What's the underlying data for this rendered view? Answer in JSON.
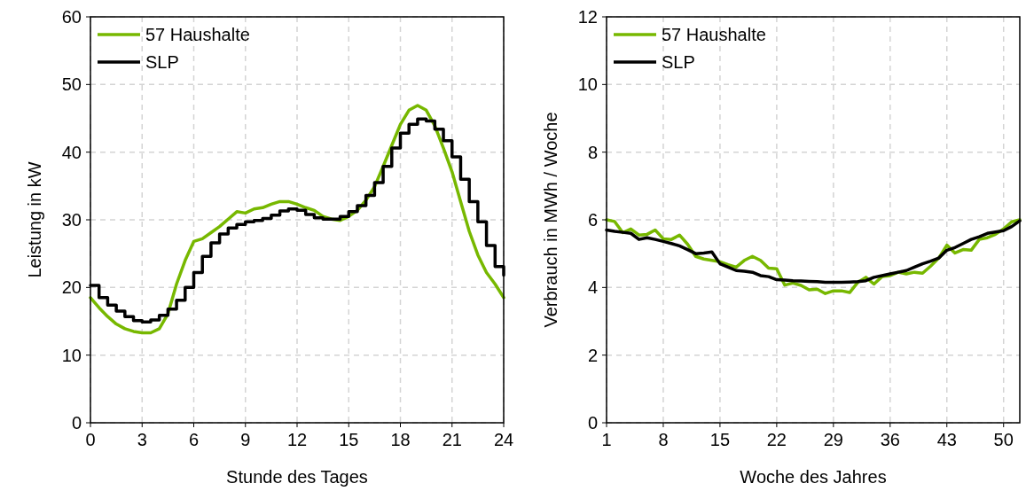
{
  "chart_data": [
    {
      "type": "line",
      "xlabel": "Stunde des Tages",
      "ylabel": "Leistung in kW",
      "xlim": [
        0,
        24
      ],
      "xticks": [
        0,
        3,
        6,
        9,
        12,
        15,
        18,
        21,
        24
      ],
      "ylim": [
        0,
        60
      ],
      "yticks": [
        0,
        10,
        20,
        30,
        40,
        50,
        60
      ],
      "grid": true,
      "legend": "top left",
      "line_style": "solid",
      "x": [
        0,
        0.5,
        1,
        1.5,
        2,
        2.5,
        3,
        3.5,
        4,
        4.5,
        5,
        5.5,
        6,
        6.5,
        7,
        7.5,
        8,
        8.5,
        9,
        9.5,
        10,
        10.5,
        11,
        11.5,
        12,
        12.5,
        13,
        13.5,
        14,
        14.5,
        15,
        15.5,
        16,
        16.5,
        17,
        17.5,
        18,
        18.5,
        19,
        19.5,
        20,
        20.5,
        21,
        21.5,
        22,
        22.5,
        23,
        23.5,
        24
      ],
      "series": [
        {
          "name": "57 Haushalte",
          "color": "#77b800",
          "values": [
            18.5,
            17.0,
            15.7,
            14.6,
            13.9,
            13.5,
            13.3,
            13.3,
            13.9,
            16.1,
            20.5,
            24.0,
            26.8,
            27.2,
            28.1,
            29.0,
            30.1,
            31.2,
            31.0,
            31.6,
            31.8,
            32.3,
            32.7,
            32.7,
            32.3,
            31.8,
            31.4,
            30.5,
            30.1,
            29.9,
            30.5,
            31.4,
            32.9,
            34.9,
            37.9,
            41.0,
            44.1,
            46.2,
            46.9,
            46.2,
            43.9,
            40.6,
            37.1,
            32.7,
            28.3,
            24.8,
            22.2,
            20.5,
            18.5
          ]
        },
        {
          "name": "SLP",
          "color": "#000000",
          "type": "step",
          "values": [
            20.3,
            18.5,
            17.4,
            16.5,
            15.7,
            15.1,
            14.9,
            15.2,
            15.9,
            16.8,
            18.1,
            20.0,
            22.2,
            24.6,
            26.6,
            27.9,
            28.8,
            29.3,
            29.7,
            29.9,
            30.2,
            30.7,
            31.3,
            31.6,
            31.4,
            30.8,
            30.3,
            30.1,
            30.1,
            30.5,
            31.2,
            32.1,
            33.6,
            35.5,
            37.9,
            40.6,
            42.8,
            44.1,
            44.9,
            44.6,
            43.4,
            41.7,
            39.3,
            36.0,
            32.7,
            29.7,
            26.2,
            23.1,
            21.8
          ]
        }
      ]
    },
    {
      "type": "line",
      "xlabel": "Woche des Jahres",
      "ylabel": "Verbrauch in MWh / Woche",
      "xlim": [
        1,
        52
      ],
      "xticks": [
        1,
        8,
        15,
        22,
        29,
        36,
        43,
        50
      ],
      "ylim": [
        0,
        12
      ],
      "yticks": [
        0,
        2,
        4,
        6,
        8,
        10,
        12
      ],
      "grid": true,
      "legend": "top left",
      "line_style": "solid",
      "x": [
        1,
        2,
        3,
        4,
        5,
        6,
        7,
        8,
        9,
        10,
        11,
        12,
        13,
        14,
        15,
        16,
        17,
        18,
        19,
        20,
        21,
        22,
        23,
        24,
        25,
        26,
        27,
        28,
        29,
        30,
        31,
        32,
        33,
        34,
        35,
        36,
        37,
        38,
        39,
        40,
        41,
        42,
        43,
        44,
        45,
        46,
        47,
        48,
        49,
        50,
        51,
        52
      ],
      "series": [
        {
          "name": "57 Haushalte",
          "color": "#77b800",
          "values": [
            6.0,
            5.95,
            5.62,
            5.73,
            5.55,
            5.57,
            5.7,
            5.44,
            5.42,
            5.55,
            5.28,
            4.92,
            4.84,
            4.8,
            4.76,
            4.67,
            4.6,
            4.8,
            4.92,
            4.8,
            4.57,
            4.55,
            4.07,
            4.13,
            4.06,
            3.93,
            3.95,
            3.82,
            3.9,
            3.9,
            3.85,
            4.15,
            4.3,
            4.1,
            4.32,
            4.35,
            4.45,
            4.4,
            4.45,
            4.42,
            4.63,
            4.87,
            5.25,
            5.02,
            5.12,
            5.1,
            5.42,
            5.47,
            5.57,
            5.73,
            5.94,
            6.0
          ]
        },
        {
          "name": "SLP",
          "color": "#000000",
          "values": [
            5.7,
            5.66,
            5.63,
            5.6,
            5.42,
            5.47,
            5.42,
            5.36,
            5.3,
            5.23,
            5.12,
            5.0,
            5.02,
            5.05,
            4.7,
            4.6,
            4.5,
            4.48,
            4.45,
            4.35,
            4.32,
            4.23,
            4.22,
            4.2,
            4.19,
            4.18,
            4.17,
            4.15,
            4.15,
            4.15,
            4.16,
            4.17,
            4.2,
            4.3,
            4.35,
            4.4,
            4.45,
            4.5,
            4.6,
            4.7,
            4.78,
            4.87,
            5.1,
            5.18,
            5.3,
            5.42,
            5.5,
            5.6,
            5.64,
            5.68,
            5.8,
            5.97
          ]
        }
      ]
    }
  ]
}
